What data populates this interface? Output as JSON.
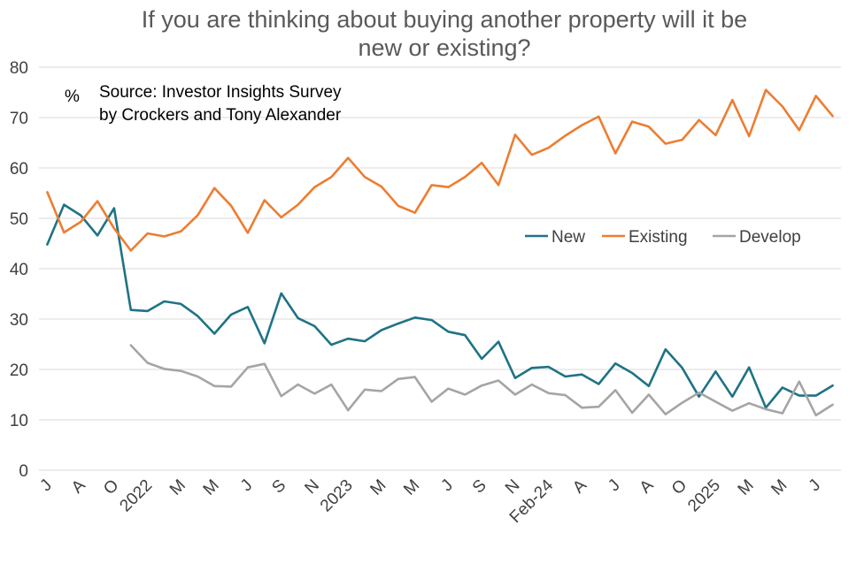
{
  "chart_data": {
    "type": "line",
    "title_line1": "If you are thinking about buying another property will it be",
    "title_line2": "new or existing?",
    "unit_label": "%",
    "source_line1": "Source: Investor Insights Survey",
    "source_line2": "by Crockers and Tony Alexander",
    "ylim": [
      0,
      80
    ],
    "y_ticks": [
      "0",
      "10",
      "20",
      "30",
      "40",
      "50",
      "60",
      "70",
      "80"
    ],
    "grid": true,
    "legend_position": "right-middle",
    "x_tick_labels": [
      "J",
      "A",
      "O",
      "2022",
      "M",
      "M",
      "J",
      "S",
      "N",
      "2023",
      "M",
      "M",
      "J",
      "S",
      "N",
      "Feb-24",
      "A",
      "J",
      "A",
      "O",
      "2025",
      "M",
      "M",
      "J"
    ],
    "series": [
      {
        "name": "New",
        "color": "#1f7384",
        "values": [
          44.8,
          52.7,
          50.6,
          46.6,
          52.0,
          31.8,
          31.6,
          33.5,
          33.0,
          30.6,
          27.1,
          30.9,
          32.4,
          25.2,
          35.1,
          30.2,
          28.6,
          24.9,
          26.1,
          25.6,
          27.8,
          29.1,
          30.3,
          29.8,
          27.5,
          26.8,
          22.1,
          25.5,
          18.3,
          20.3,
          20.5,
          18.6,
          19.0,
          17.1,
          21.2,
          19.3,
          16.7,
          24.0,
          20.3,
          14.6,
          19.6,
          14.6,
          20.4,
          12.4,
          16.4,
          14.8,
          14.8,
          16.8
        ]
      },
      {
        "name": "Existing",
        "color": "#ed7d31",
        "values": [
          55.2,
          47.2,
          49.3,
          53.4,
          48.0,
          43.6,
          47.0,
          46.4,
          47.4,
          50.6,
          56.0,
          52.5,
          47.1,
          53.6,
          50.2,
          52.7,
          56.2,
          58.2,
          62.0,
          58.2,
          56.3,
          52.5,
          51.1,
          56.6,
          56.2,
          58.2,
          61.0,
          56.6,
          66.6,
          62.6,
          64.0,
          66.4,
          68.5,
          70.2,
          62.9,
          69.2,
          68.2,
          64.8,
          65.6,
          69.5,
          66.5,
          73.5,
          66.3,
          75.5,
          72.2,
          67.5,
          74.3,
          70.3
        ]
      },
      {
        "name": "Develop",
        "color": "#a5a5a5",
        "values": [
          null,
          null,
          null,
          null,
          null,
          24.8,
          21.3,
          20.1,
          19.7,
          18.6,
          16.7,
          16.6,
          20.4,
          21.1,
          14.7,
          17.0,
          15.2,
          17.0,
          11.9,
          16.0,
          15.7,
          18.1,
          18.5,
          13.6,
          16.2,
          15.0,
          16.8,
          17.8,
          15.0,
          17.0,
          15.3,
          14.9,
          12.4,
          12.6,
          15.9,
          11.4,
          15.0,
          11.1,
          13.4,
          15.4,
          13.6,
          11.8,
          13.3,
          12.1,
          11.3,
          17.6,
          10.9,
          13.0
        ]
      }
    ]
  }
}
